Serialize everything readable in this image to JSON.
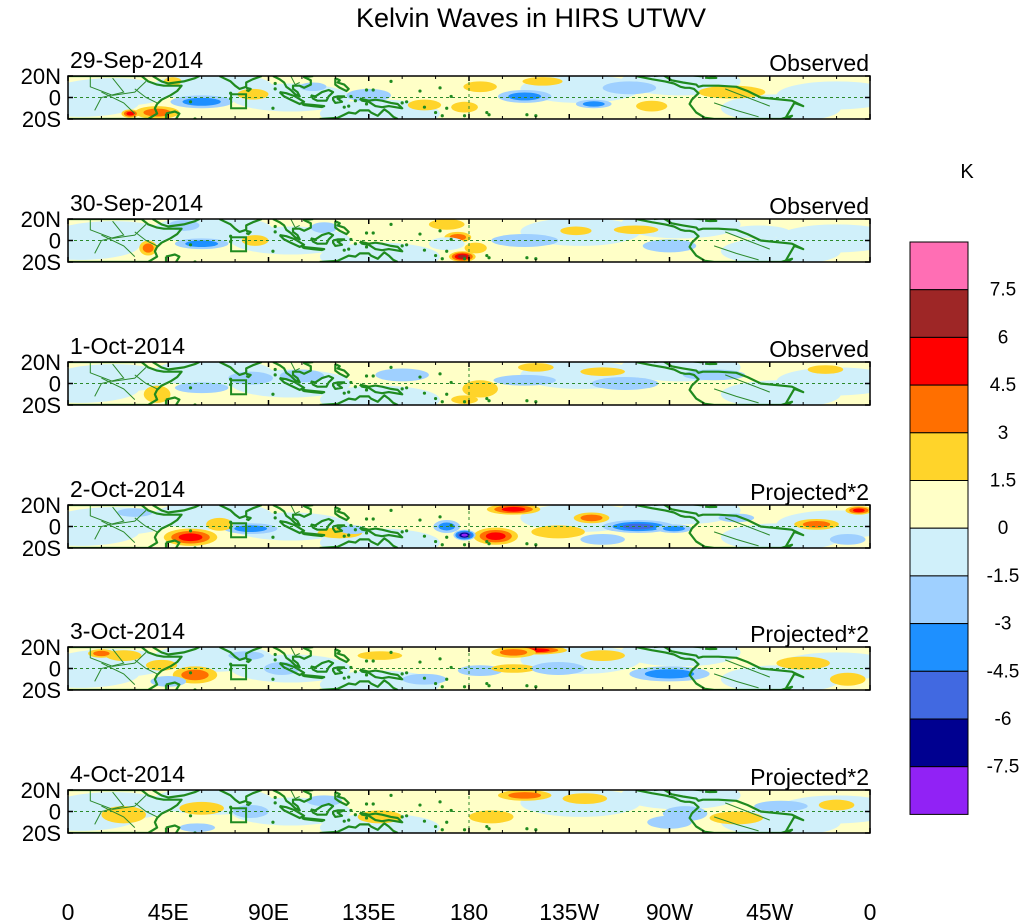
{
  "chart_data": {
    "type": "heatmap",
    "title": "Kelvin Waves in HIRS UTWV",
    "xlabel": "",
    "ylabel": "",
    "x_ticks": [
      "0",
      "45E",
      "90E",
      "135E",
      "180",
      "135W",
      "90W",
      "45W",
      "0"
    ],
    "y_ticks": [
      "20N",
      "0",
      "20S"
    ],
    "xlim": [
      0,
      360
    ],
    "ylim": [
      -20,
      20
    ],
    "panels": [
      {
        "date": "29-Sep-2014",
        "status": "Observed",
        "blobs": [
          [
            185,
            10,
            7.5,
            5,
            1.8
          ],
          [
            178,
            -9,
            6,
            5,
            1.6
          ],
          [
            160,
            -7,
            7.5,
            5,
            2.4
          ],
          [
            205,
            1,
            12,
            6,
            -3.4
          ],
          [
            213,
            15,
            9,
            4,
            2.0
          ],
          [
            236,
            -6,
            8,
            4,
            -3.0
          ],
          [
            60,
            -4,
            14,
            6,
            -3.2
          ],
          [
            47,
            15,
            4,
            4,
            2.0
          ],
          [
            40,
            -14,
            10,
            6,
            3.2
          ],
          [
            28,
            -15,
            4,
            4,
            5.0
          ],
          [
            83,
            3,
            7,
            5,
            1.8
          ],
          [
            110,
            10,
            6,
            4,
            -2.0
          ],
          [
            262,
            -8,
            7,
            5,
            1.6
          ],
          [
            252,
            9,
            12,
            6,
            -1.6
          ],
          [
            298,
            5,
            15,
            6,
            1.8
          ],
          [
            135,
            2,
            10,
            6,
            -1.5
          ],
          [
            320,
            -12,
            10,
            6,
            -1.4
          ]
        ]
      },
      {
        "date": "30-Sep-2014",
        "status": "Observed",
        "blobs": [
          [
            177,
            -15,
            6,
            5,
            6.2
          ],
          [
            175,
            3,
            6,
            5,
            3.5
          ],
          [
            183,
            -7,
            5,
            5,
            2.2
          ],
          [
            170,
            15,
            8,
            5,
            2.0
          ],
          [
            60,
            -3,
            12,
            5,
            -3.6
          ],
          [
            36,
            -7,
            4,
            7,
            3.0
          ],
          [
            52,
            14,
            7,
            5,
            -1.7
          ],
          [
            84,
            0,
            6,
            5,
            2.6
          ],
          [
            115,
            12,
            6,
            5,
            -1.6
          ],
          [
            170,
            -3,
            8,
            6,
            -1.4
          ],
          [
            205,
            0,
            15,
            6,
            -1.6
          ],
          [
            228,
            9,
            7,
            4,
            2.0
          ],
          [
            255,
            10,
            10,
            4,
            1.5
          ],
          [
            270,
            -5,
            12,
            6,
            -1.6
          ],
          [
            310,
            8,
            14,
            6,
            -1.4
          ]
        ]
      },
      {
        "date": "1-Oct-2014",
        "status": "Observed",
        "blobs": [
          [
            185,
            -5,
            8,
            8,
            2.8
          ],
          [
            178,
            -15,
            6,
            4,
            2.6
          ],
          [
            210,
            15,
            8,
            4,
            1.8
          ],
          [
            240,
            11,
            10,
            4,
            2.0
          ],
          [
            60,
            -4,
            12,
            5,
            -2.0
          ],
          [
            40,
            -10,
            6,
            8,
            1.8
          ],
          [
            82,
            5,
            10,
            6,
            -1.6
          ],
          [
            105,
            7,
            10,
            6,
            -1.6
          ],
          [
            150,
            8,
            12,
            6,
            -1.5
          ],
          [
            205,
            3,
            14,
            5,
            -1.7
          ],
          [
            250,
            0,
            15,
            6,
            -1.6
          ],
          [
            340,
            13,
            8,
            4,
            1.6
          ],
          [
            290,
            8,
            14,
            5,
            -1.5
          ]
        ]
      },
      {
        "date": "2-Oct-2014",
        "status": "Projected*2",
        "blobs": [
          [
            200,
            16,
            12,
            5,
            4.8
          ],
          [
            192,
            -9,
            10,
            8,
            4.6
          ],
          [
            178,
            -8,
            5,
            5,
            -7.8
          ],
          [
            170,
            0,
            6,
            6,
            -4.2
          ],
          [
            55,
            -10,
            12,
            8,
            4.8
          ],
          [
            82,
            -2,
            12,
            5,
            -4.4
          ],
          [
            68,
            2,
            6,
            6,
            2.0
          ],
          [
            122,
            -6,
            10,
            5,
            2.2
          ],
          [
            128,
            -3,
            6,
            4,
            -2.8
          ],
          [
            220,
            -5,
            12,
            6,
            2.6
          ],
          [
            235,
            8,
            8,
            5,
            3.0
          ],
          [
            256,
            0,
            16,
            6,
            -4.5
          ],
          [
            272,
            -2,
            8,
            4,
            -3.4
          ],
          [
            300,
            8,
            8,
            4,
            -2.8
          ],
          [
            336,
            2,
            10,
            5,
            3.2
          ],
          [
            355,
            15,
            6,
            4,
            4.5
          ],
          [
            350,
            -12,
            8,
            5,
            -2.0
          ],
          [
            240,
            -12,
            10,
            5,
            -1.6
          ],
          [
            30,
            13,
            8,
            4,
            -1.6
          ]
        ]
      },
      {
        "date": "3-Oct-2014",
        "status": "Projected*2",
        "blobs": [
          [
            210,
            17,
            14,
            4,
            5.0
          ],
          [
            200,
            15,
            10,
            5,
            3.0
          ],
          [
            57,
            -6,
            10,
            8,
            4.2
          ],
          [
            42,
            3,
            7,
            5,
            2.0
          ],
          [
            45,
            -12,
            8,
            5,
            -2.2
          ],
          [
            25,
            12,
            8,
            5,
            2.8
          ],
          [
            15,
            14,
            6,
            4,
            4.2
          ],
          [
            96,
            0,
            8,
            6,
            -2.5
          ],
          [
            185,
            -2,
            10,
            5,
            -2.0
          ],
          [
            200,
            0,
            10,
            4,
            2.0
          ],
          [
            220,
            0,
            12,
            6,
            -1.6
          ],
          [
            240,
            12,
            10,
            5,
            2.0
          ],
          [
            270,
            -5,
            18,
            7,
            -3.5
          ],
          [
            140,
            12,
            10,
            4,
            2.0
          ],
          [
            160,
            -10,
            10,
            5,
            -1.6
          ],
          [
            330,
            5,
            12,
            6,
            1.8
          ],
          [
            350,
            -10,
            8,
            6,
            2.0
          ],
          [
            80,
            12,
            8,
            4,
            -1.8
          ]
        ]
      },
      {
        "date": "4-Oct-2014",
        "status": "Projected*2",
        "blobs": [
          [
            205,
            15,
            12,
            5,
            3.0
          ],
          [
            190,
            -5,
            10,
            6,
            1.8
          ],
          [
            277,
            -2,
            10,
            7,
            -2.8
          ],
          [
            270,
            -10,
            10,
            6,
            -1.6
          ],
          [
            60,
            3,
            10,
            6,
            1.6
          ],
          [
            82,
            0,
            8,
            6,
            -1.5
          ],
          [
            58,
            -15,
            8,
            4,
            -2.0
          ],
          [
            140,
            -5,
            10,
            6,
            1.6
          ],
          [
            232,
            12,
            10,
            5,
            1.6
          ],
          [
            300,
            -6,
            12,
            6,
            1.6
          ],
          [
            320,
            5,
            12,
            5,
            -1.6
          ],
          [
            345,
            6,
            8,
            5,
            1.8
          ],
          [
            25,
            -3,
            10,
            8,
            1.6
          ],
          [
            115,
            10,
            8,
            5,
            -1.5
          ]
        ]
      }
    ],
    "colorbar": {
      "unit": "K",
      "levels": [
        "7.5",
        "6",
        "4.5",
        "3",
        "1.5",
        "0",
        "-1.5",
        "-3",
        "-4.5",
        "-6",
        "-7.5"
      ],
      "colors": [
        "#ff6eb4",
        "#9e2626",
        "#ff0000",
        "#ff6f00",
        "#ffd42a",
        "#ffffc7",
        "#d0f0fa",
        "#9fd0ff",
        "#1e90ff",
        "#4169e1",
        "#000090",
        "#9122f5"
      ]
    }
  },
  "map_colors": {
    "coast": "#1f8a1f",
    "border": "#2c8a2c",
    "dashed": "#2c8a2c"
  }
}
